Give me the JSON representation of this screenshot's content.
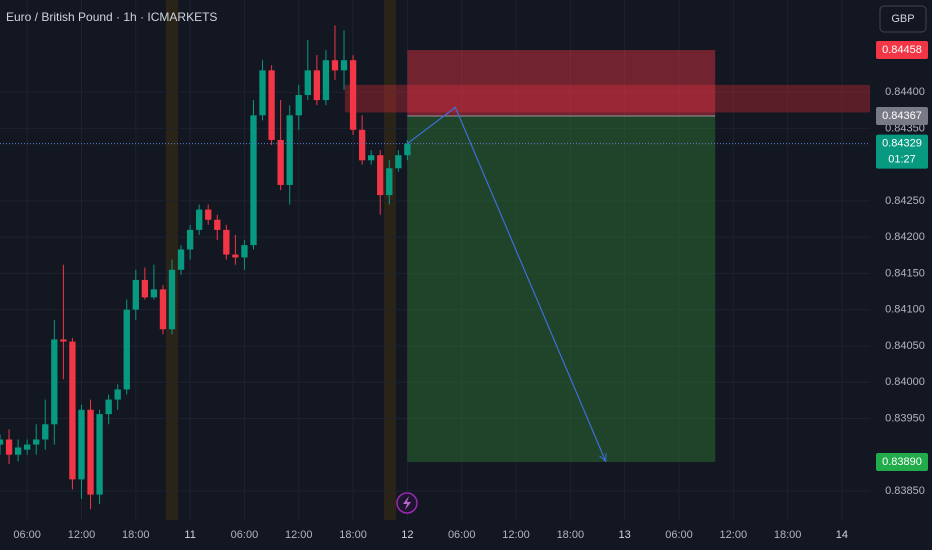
{
  "chart_data": {
    "type": "candlestick",
    "title": "Euro / British Pound · 1h · ICMARKETS",
    "currency": "GBP",
    "up_color": "#089981",
    "down_color": "#f23645",
    "grid": true,
    "xlim": [
      3,
      99.1
    ],
    "ylim": [
      0.8381,
      0.84527
    ],
    "xticks": [
      {
        "value": 6,
        "label": "06:00"
      },
      {
        "value": 12,
        "label": "12:00"
      },
      {
        "value": 18,
        "label": "18:00"
      },
      {
        "value": 24,
        "label": "11"
      },
      {
        "value": 30,
        "label": "06:00"
      },
      {
        "value": 36,
        "label": "12:00"
      },
      {
        "value": 42,
        "label": "18:00"
      },
      {
        "value": 48,
        "label": "12"
      },
      {
        "value": 54,
        "label": "06:00"
      },
      {
        "value": 60,
        "label": "12:00"
      },
      {
        "value": 66,
        "label": "18:00"
      },
      {
        "value": 72,
        "label": "13"
      },
      {
        "value": 78,
        "label": "06:00"
      },
      {
        "value": 84,
        "label": "12:00"
      },
      {
        "value": 90,
        "label": "18:00"
      },
      {
        "value": 96,
        "label": "14"
      }
    ],
    "yticks": [
      {
        "value": 0.8385,
        "label": "0.83850"
      },
      {
        "value": 0.8395,
        "label": "0.83950"
      },
      {
        "value": 0.84,
        "label": "0.84000"
      },
      {
        "value": 0.8405,
        "label": "0.84050"
      },
      {
        "value": 0.841,
        "label": "0.84100"
      },
      {
        "value": 0.8415,
        "label": "0.84150"
      },
      {
        "value": 0.842,
        "label": "0.84200"
      },
      {
        "value": 0.8425,
        "label": "0.84250"
      },
      {
        "value": 0.8435,
        "label": "0.84350"
      },
      {
        "value": 0.844,
        "label": "0.84400"
      }
    ],
    "x": [
      3,
      4,
      5,
      6,
      7,
      8,
      9,
      10,
      11,
      12,
      13,
      14,
      15,
      16,
      17,
      18,
      19,
      20,
      21,
      22,
      23,
      24,
      25,
      26,
      27,
      28,
      29,
      30,
      31,
      32,
      33,
      34,
      35,
      36,
      37,
      38,
      39,
      40,
      41,
      42,
      43,
      44,
      45,
      46,
      47,
      48
    ],
    "open": [
      0.83914,
      0.83921,
      0.839,
      0.83907,
      0.83914,
      0.83921,
      0.83942,
      0.84059,
      0.84056,
      0.83866,
      0.83962,
      0.83845,
      0.83956,
      0.83976,
      0.8399,
      0.841,
      0.84141,
      0.84117,
      0.84128,
      0.84073,
      0.84155,
      0.84183,
      0.8421,
      0.84238,
      0.84224,
      0.8421,
      0.84176,
      0.84172,
      0.84189,
      0.84368,
      0.8443,
      0.84334,
      0.84272,
      0.84368,
      0.84396,
      0.8443,
      0.84389,
      0.84444,
      0.8443,
      0.84444,
      0.84348,
      0.84306,
      0.84313,
      0.84258,
      0.84295,
      0.84313
    ],
    "high": [
      0.83928,
      0.83935,
      0.83921,
      0.83921,
      0.83942,
      0.83976,
      0.84086,
      0.84162,
      0.84061,
      0.83969,
      0.83976,
      0.83962,
      0.83983,
      0.83997,
      0.84114,
      0.84155,
      0.84158,
      0.84162,
      0.84134,
      0.84169,
      0.84189,
      0.84217,
      0.84245,
      0.84245,
      0.84231,
      0.84217,
      0.84203,
      0.84196,
      0.84389,
      0.84444,
      0.84437,
      0.84389,
      0.84382,
      0.8441,
      0.84472,
      0.84451,
      0.84458,
      0.84492,
      0.84485,
      0.84451,
      0.84368,
      0.8432,
      0.8432,
      0.84306,
      0.8432,
      0.84334
    ],
    "low": [
      0.839,
      0.83887,
      0.83891,
      0.839,
      0.839,
      0.83907,
      0.83914,
      0.84004,
      0.83852,
      0.83839,
      0.83825,
      0.83832,
      0.83942,
      0.83962,
      0.83983,
      0.84086,
      0.84114,
      0.84114,
      0.84066,
      0.84066,
      0.84148,
      0.84169,
      0.84203,
      0.84217,
      0.84196,
      0.84169,
      0.84162,
      0.84155,
      0.84183,
      0.84361,
      0.84327,
      0.84265,
      0.84245,
      0.84348,
      0.84389,
      0.84382,
      0.84382,
      0.84417,
      0.84403,
      0.84341,
      0.843,
      0.843,
      0.84231,
      0.84245,
      0.8429,
      0.84306
    ],
    "close": [
      0.83921,
      0.839,
      0.8391,
      0.83914,
      0.83921,
      0.83942,
      0.84059,
      0.84056,
      0.83866,
      0.83962,
      0.83845,
      0.83956,
      0.83976,
      0.8399,
      0.841,
      0.84141,
      0.84117,
      0.84128,
      0.84073,
      0.84155,
      0.84183,
      0.8421,
      0.84238,
      0.84224,
      0.8421,
      0.84176,
      0.84172,
      0.84189,
      0.84368,
      0.8443,
      0.84334,
      0.84272,
      0.84368,
      0.84396,
      0.8443,
      0.84389,
      0.84444,
      0.8443,
      0.84444,
      0.84348,
      0.84306,
      0.84313,
      0.84258,
      0.84295,
      0.84313,
      0.84329
    ],
    "zone": {
      "x_start": 41.1,
      "x_end": 99.1,
      "top": 0.8441,
      "bottom": 0.84372
    },
    "position": {
      "x_start": 48,
      "x_end": 82,
      "stop": {
        "value": 0.84458,
        "label": "0.84458"
      },
      "entry": {
        "value": 0.84367,
        "label": "0.84367"
      },
      "target": {
        "value": 0.8389,
        "label": "0.83890"
      }
    },
    "drawing_path": {
      "x": [
        48,
        53.3,
        69.9
      ],
      "y": [
        0.84329,
        0.84379,
        0.83891
      ]
    },
    "last_price": {
      "value": 0.84329,
      "label": "0.84329",
      "countdown": "01:27"
    }
  }
}
